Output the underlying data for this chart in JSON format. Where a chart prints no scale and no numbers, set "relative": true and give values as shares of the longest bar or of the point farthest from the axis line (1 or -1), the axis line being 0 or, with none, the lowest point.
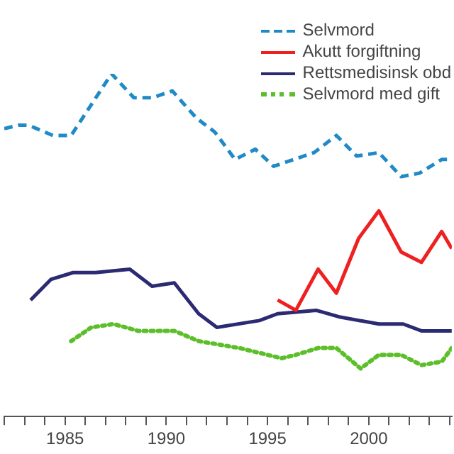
{
  "chart_data": {
    "type": "line",
    "relative": true,
    "xlim": [
      1982,
      2004.1
    ],
    "xticks": [
      {
        "value": 1982,
        "label": null
      },
      {
        "value": 1983,
        "label": null
      },
      {
        "value": 1984,
        "label": null
      },
      1985,
      {
        "value": 1986,
        "label": null
      },
      {
        "value": 1987,
        "label": null
      },
      {
        "value": 1988,
        "label": null
      },
      {
        "value": 1989,
        "label": null
      },
      1990,
      {
        "value": 1991,
        "label": null
      },
      {
        "value": 1992,
        "label": null
      },
      {
        "value": 1993,
        "label": null
      },
      {
        "value": 1994,
        "label": null
      },
      1995,
      {
        "value": 1996,
        "label": null
      },
      {
        "value": 1997,
        "label": null
      },
      {
        "value": 1998,
        "label": null
      },
      {
        "value": 1999,
        "label": null
      },
      2000,
      {
        "value": 2001,
        "label": null
      },
      {
        "value": 2002,
        "label": null
      },
      {
        "value": 2003,
        "label": null
      },
      {
        "value": 2004,
        "label": null
      }
    ],
    "legend": "top right",
    "grid": false,
    "marker": "none",
    "tick_labels": "x",
    "series": [
      {
        "name": "Selvmord",
        "color": "#1f8ac6",
        "line_style": "dashed",
        "x": [
          1982.0,
          1982.7,
          1983.2,
          1984.4,
          1985.3,
          1987.3,
          1988.4,
          1989.3,
          1990.3,
          1991.5,
          1992.4,
          1993.4,
          1994.4,
          1995.3,
          1997.3,
          1998.4,
          1999.4,
          2000.5,
          2001.6,
          2002.5,
          2003.6,
          2004.1
        ],
        "values": [
          0.84,
          0.85,
          0.85,
          0.82,
          0.82,
          1.0,
          0.93,
          0.93,
          0.95,
          0.87,
          0.83,
          0.75,
          0.78,
          0.73,
          0.77,
          0.82,
          0.76,
          0.77,
          0.7,
          0.71,
          0.75,
          0.75
        ]
      },
      {
        "name": "Akutt forgiftning",
        "color": "#ee2020",
        "line_style": "solid",
        "x": [
          1995.5,
          1996.4,
          1997.5,
          1998.4,
          1999.5,
          2000.5,
          2001.6,
          2002.6,
          2003.6,
          2004.1
        ],
        "values": [
          0.34,
          0.31,
          0.43,
          0.36,
          0.52,
          0.6,
          0.48,
          0.45,
          0.54,
          0.49
        ]
      },
      {
        "name": "Rettsmedisinsk obd",
        "color": "#2b2a72",
        "line_style": "solid",
        "x": [
          1983.3,
          1984.3,
          1985.4,
          1986.5,
          1988.2,
          1989.3,
          1990.4,
          1991.6,
          1992.5,
          1994.6,
          1995.5,
          1997.4,
          1998.6,
          2000.5,
          2001.7,
          2002.6,
          2004.1
        ],
        "values": [
          0.34,
          0.4,
          0.42,
          0.42,
          0.43,
          0.38,
          0.39,
          0.3,
          0.26,
          0.28,
          0.3,
          0.31,
          0.29,
          0.27,
          0.27,
          0.25,
          0.25
        ]
      },
      {
        "name": "Selvmord med gift",
        "color": "#5cbf2a",
        "line_style": "dotted",
        "x": [
          1985.3,
          1986.3,
          1987.4,
          1988.6,
          1990.4,
          1991.6,
          1993.6,
          1995.7,
          1996.4,
          1997.5,
          1998.4,
          1999.6,
          2000.5,
          2001.6,
          2002.6,
          2003.6,
          2004.1
        ],
        "values": [
          0.22,
          0.26,
          0.27,
          0.25,
          0.25,
          0.22,
          0.2,
          0.17,
          0.18,
          0.2,
          0.2,
          0.14,
          0.18,
          0.18,
          0.15,
          0.16,
          0.2
        ]
      }
    ]
  }
}
